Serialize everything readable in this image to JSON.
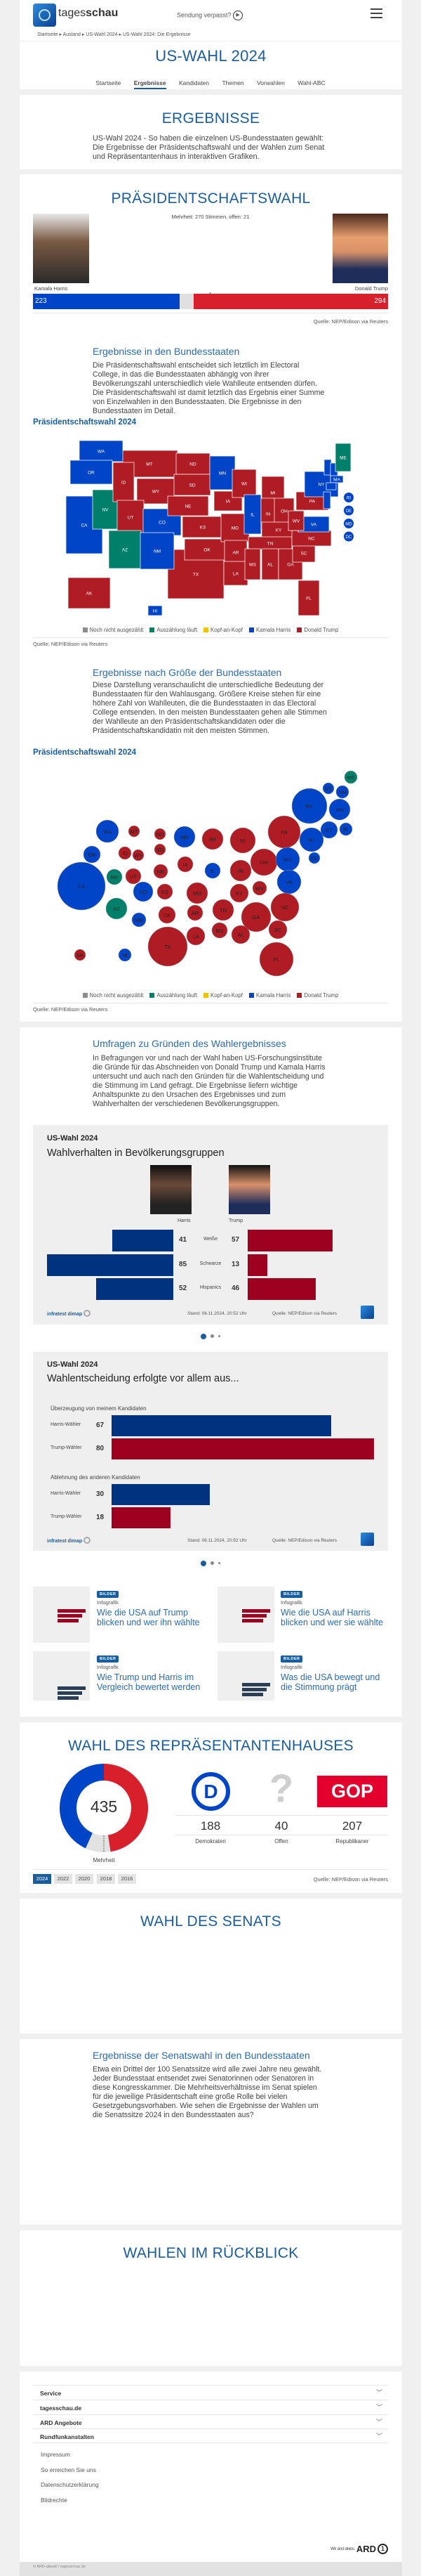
{
  "header": {
    "logo_text_light": "tages",
    "logo_text_bold": "schau",
    "missed_show": "Sendung verpasst?",
    "breadcrumb": [
      "Startseite",
      "Ausland",
      "US-Wahl 2024",
      "US-Wahl 2024: Die Ergebnisse"
    ]
  },
  "hero": {
    "title": "US-WAHL 2024",
    "tabs": [
      "Startseite",
      "Ergebnisse",
      "Kandidaten",
      "Themen",
      "Vorwahlen",
      "Wahl-ABC"
    ],
    "active_tab": "Ergebnisse"
  },
  "intro": {
    "title": "ERGEBNISSE",
    "text": "US-Wahl 2024 - So haben die einzelnen US-Bundesstaaten gewählt: Die Ergebnisse der Präsidentschaftswahl und der Wahlen zum Senat und Repräsentantenhaus in interaktiven Grafiken."
  },
  "president": {
    "title": "PRÄSIDENTSCHAFTSWAHL",
    "majority_text": "Mehrheit: 270 Stimmen, offen: 21",
    "harris": {
      "name": "Kamala Harris",
      "votes": "223"
    },
    "trump": {
      "name": "Donald Trump",
      "votes": "294"
    },
    "open": 21,
    "majority": 270,
    "source": "Quelle: NEP/Edison via Reuters",
    "states_heading": "Ergebnisse in den Bundesstaaten",
    "states_text": "Die Präsidentschaftswahl entscheidet sich letztlich im Electoral College, in das die Bundesstaaten abhängig von ihrer Bevölkerungszahl unterschiedlich viele Wahlleute entsenden dürfen. Die Präsidentschaftswahl ist damit letztlich das Ergebnis einer Summe von Einzelwahlen in den Bundesstaaten. Die Ergebnisse in den Bundesstaaten im Detail.",
    "map_title": "Präsidentschaftswahl 2024",
    "size_heading": "Ergebnisse nach Größe der Bundesstaaten",
    "size_text": "Diese Darstellung veranschaulicht die unterschiedliche Bedeutung der Bundesstaaten für den Wahlausgang. Größere Kreise stehen für eine höhere Zahl von Wahlleuten, die die Bundesstaaten in das Electoral College entsenden. In den meisten Bundesstaaten gehen alle Stimmen der Wahlleute an den Präsidentschaftskandidaten oder die Präsidentschaftskandidatin mit den meisten Stimmen.",
    "bubble_title": "Präsidentschaftswahl 2024",
    "legend": [
      {
        "key": "none",
        "label": "Noch nicht ausgezählt",
        "color": "#8c8c8c"
      },
      {
        "key": "counting",
        "label": "Auszählung läuft",
        "color": "#00806a"
      },
      {
        "key": "tossup",
        "label": "Kopf-an-Kopf",
        "color": "#f0c400"
      },
      {
        "key": "harris",
        "label": "Kamala Harris",
        "color": "#0044c8"
      },
      {
        "key": "trump",
        "label": "Donald Trump",
        "color": "#b01c24"
      }
    ],
    "states": {
      "WA": "harris",
      "OR": "harris",
      "CA": "harris",
      "NV": "counting",
      "ID": "trump",
      "MT": "trump",
      "WY": "trump",
      "UT": "trump",
      "AZ": "counting",
      "CO": "harris",
      "NM": "harris",
      "ND": "trump",
      "SD": "trump",
      "NE": "trump",
      "KS": "trump",
      "OK": "trump",
      "TX": "trump",
      "MN": "harris",
      "IA": "trump",
      "MO": "trump",
      "AR": "trump",
      "LA": "trump",
      "WI": "trump",
      "IL": "harris",
      "MI": "trump",
      "IN": "trump",
      "OH": "trump",
      "KY": "trump",
      "TN": "trump",
      "MS": "trump",
      "AL": "trump",
      "GA": "trump",
      "FL": "trump",
      "SC": "trump",
      "NC": "trump",
      "VA": "harris",
      "WV": "trump",
      "PA": "trump",
      "NY": "harris",
      "VT": "harris",
      "NH": "harris",
      "MA": "harris",
      "CT": "harris",
      "NJ": "harris",
      "ME": "counting",
      "AK": "trump",
      "HI": "harris",
      "RI": "harris",
      "DE": "harris",
      "MD": "harris",
      "DC": "harris"
    }
  },
  "polls": {
    "heading": "Umfragen zu Gründen des Wahlergebnisses",
    "text": "In Befragungen vor und nach der Wahl haben US-Forschungsinstitute die Gründe für das Abschneiden von Donald Trump und Kamala Harris untersucht und auch nach den Gründen für die Wahlentscheidung und die Stimmung im Land gefragt. Die Ergebnisse liefern wichtige Anhaltspunkte zu den Ursachen des Ergebnisses und zum Wahlverhalten der verschiedenen Bevölkerungsgruppen.",
    "brand": "infratest dimap",
    "stand": "Stand:  06.11.2024, 20:52 Uhr",
    "source": "Quelle: NEP/Edison via Reuters"
  },
  "chart_data": [
    {
      "type": "bar",
      "kicker": "US-Wahl 2024",
      "title": "Wahlverhalten in Bevölkerungsgruppen",
      "categories": [
        "Weiße",
        "Schwarze",
        "Hispanics"
      ],
      "series": [
        {
          "name": "Harris",
          "values": [
            41,
            85,
            52
          ],
          "color": "#00337f"
        },
        {
          "name": "Trump",
          "values": [
            57,
            13,
            46
          ],
          "color": "#9e0020"
        }
      ]
    },
    {
      "type": "bar",
      "kicker": "US-Wahl 2024",
      "title": "Wahlentscheidung erfolgte vor allem aus...",
      "groups": [
        {
          "label": "Überzeugung von meinem Kandidaten",
          "rows": [
            {
              "label": "Harris-Wähler",
              "value": 67,
              "color": "#00337f"
            },
            {
              "label": "Trump-Wähler",
              "value": 80,
              "color": "#9e0020"
            }
          ]
        },
        {
          "label": "Ablehnung des anderen Kandidaten",
          "rows": [
            {
              "label": "Harris-Wähler",
              "value": 30,
              "color": "#00337f"
            },
            {
              "label": "Trump-Wähler",
              "value": 18,
              "color": "#9e0020"
            }
          ]
        }
      ]
    },
    {
      "type": "pie",
      "title": "WAHL DES REPRÄSENTANTENHAUSES",
      "total": "435",
      "majority_label": "Mehrheit",
      "slices": [
        {
          "label": "Demokraten",
          "value": 188,
          "color": "#0044c8"
        },
        {
          "label": "Offen",
          "value": 40,
          "color": "#e2e2e2"
        },
        {
          "label": "Republikaner",
          "value": 207,
          "color": "#d8202c"
        }
      ]
    }
  ],
  "tiles": [
    {
      "badge": "BILDER",
      "type": "Infografik",
      "headline": "Wie die USA auf Trump blicken und wer ihn wählte"
    },
    {
      "badge": "BILDER",
      "type": "Infografik",
      "headline": "Wie die USA auf Harris blicken und wer sie wählte"
    },
    {
      "badge": "BILDER",
      "type": "Infografik",
      "headline": "Wie Trump und Harris im Vergleich bewertet werden"
    },
    {
      "badge": "BILDER",
      "type": "Infografik",
      "headline": "Was die USA bewegt und die Stimmung prägt"
    }
  ],
  "house": {
    "years": [
      "2024",
      "2022",
      "2020",
      "2018",
      "2016"
    ],
    "active_year": "2024",
    "gop_logo": "GOP",
    "source": "Quelle: NEP/Edison via Reuters"
  },
  "senate": {
    "title": "WAHL DES SENATS",
    "heading": "Ergebnisse der Senatswahl in den Bundesstaaten",
    "text": "Etwa ein Drittel der 100 Senatssitze wird alle zwei Jahre neu gewählt. Jeder Bundesstaat entsendet zwei Senatorinnen oder Senatoren in diese Kongresskammer. Die Mehrheitsverhältnisse im Senat spielen für die jeweilige Präsidentschaft eine große Rolle bei vielen Gesetzgebungsvorhaben. Wie sehen die Ergebnisse der Wahlen um die Senatssitze 2024 in den Bundesstaaten aus?"
  },
  "review": {
    "title": "WAHLEN IM RÜCKBLICK"
  },
  "footer": {
    "sections": [
      "Service",
      "tagesschau.de",
      "ARD Angebote",
      "Rundfunkanstalten"
    ],
    "links": [
      "Impressum",
      "So erreichen Sie uns",
      "Datenschutzerklärung",
      "Bildrechte"
    ],
    "ard_slogan": "Wir sind deins.",
    "ard_logo": "ARD",
    "copyright": "© ARD-aktuell / tagesschau.de"
  }
}
